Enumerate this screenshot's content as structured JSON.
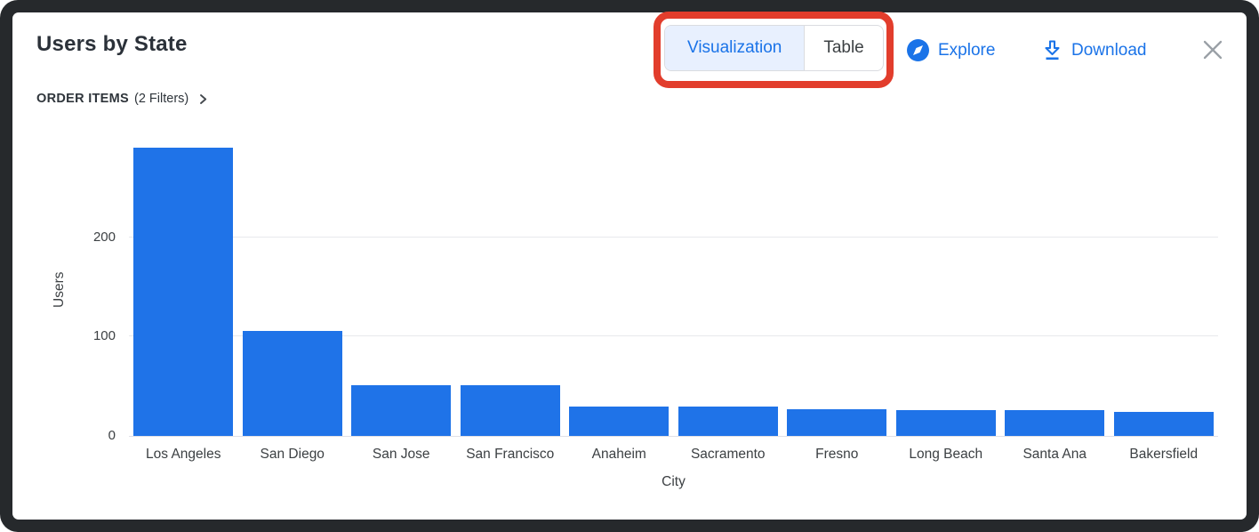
{
  "window": {
    "title": "Users by State",
    "breadcrumb": {
      "label": "ORDER ITEMS",
      "detail": "(2 Filters)"
    },
    "view_toggle": {
      "options": [
        {
          "label": "Visualization",
          "active": true
        },
        {
          "label": "Table",
          "active": false
        }
      ]
    },
    "actions": {
      "explore_label": "Explore",
      "download_label": "Download"
    }
  },
  "colors": {
    "accent": "#1a73e8",
    "bar": "#1f73e8",
    "active_toggle_bg": "#e8f0fe",
    "annotation_red": "#e23d2c",
    "frame": "#26292c"
  },
  "annotation": {
    "shape": "rounded-rectangle-outline",
    "target": "visualization-table-toggle"
  },
  "chart_data": {
    "type": "bar",
    "categories": [
      "Los Angeles",
      "San Diego",
      "San Jose",
      "San Francisco",
      "Anaheim",
      "Sacramento",
      "Fresno",
      "Long Beach",
      "Santa Ana",
      "Bakersfield"
    ],
    "values": [
      290,
      106,
      51,
      51,
      30,
      30,
      27,
      26,
      26,
      24
    ],
    "title": "Users by State",
    "xlabel": "City",
    "ylabel": "Users",
    "yticks": [
      0,
      100,
      200
    ],
    "ylim": [
      0,
      300
    ],
    "grid": true,
    "legend": false
  }
}
